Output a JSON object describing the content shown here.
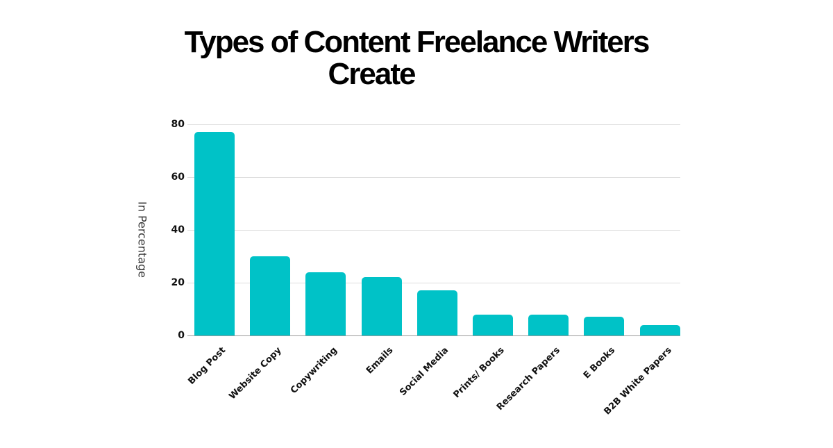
{
  "chart_data": {
    "type": "bar",
    "title": "Types of Content Freelance Writers Create",
    "title_lines": [
      "Types of Content Freelance Writers",
      "Create"
    ],
    "xlabel": "",
    "ylabel": "In Percentage",
    "ylim": [
      0,
      80
    ],
    "yticks": [
      0,
      20,
      40,
      60,
      80
    ],
    "grid": true,
    "legend": "none",
    "bar_color": "#00c2c7",
    "categories": [
      "Blog Post",
      "Website Copy",
      "Copywriting",
      "Emails",
      "Social Media",
      "Prints/ Books",
      "Research Papers",
      "E Books",
      "B2B White Papers"
    ],
    "values": [
      77,
      30,
      24,
      22,
      17,
      8,
      8,
      7,
      4
    ]
  }
}
